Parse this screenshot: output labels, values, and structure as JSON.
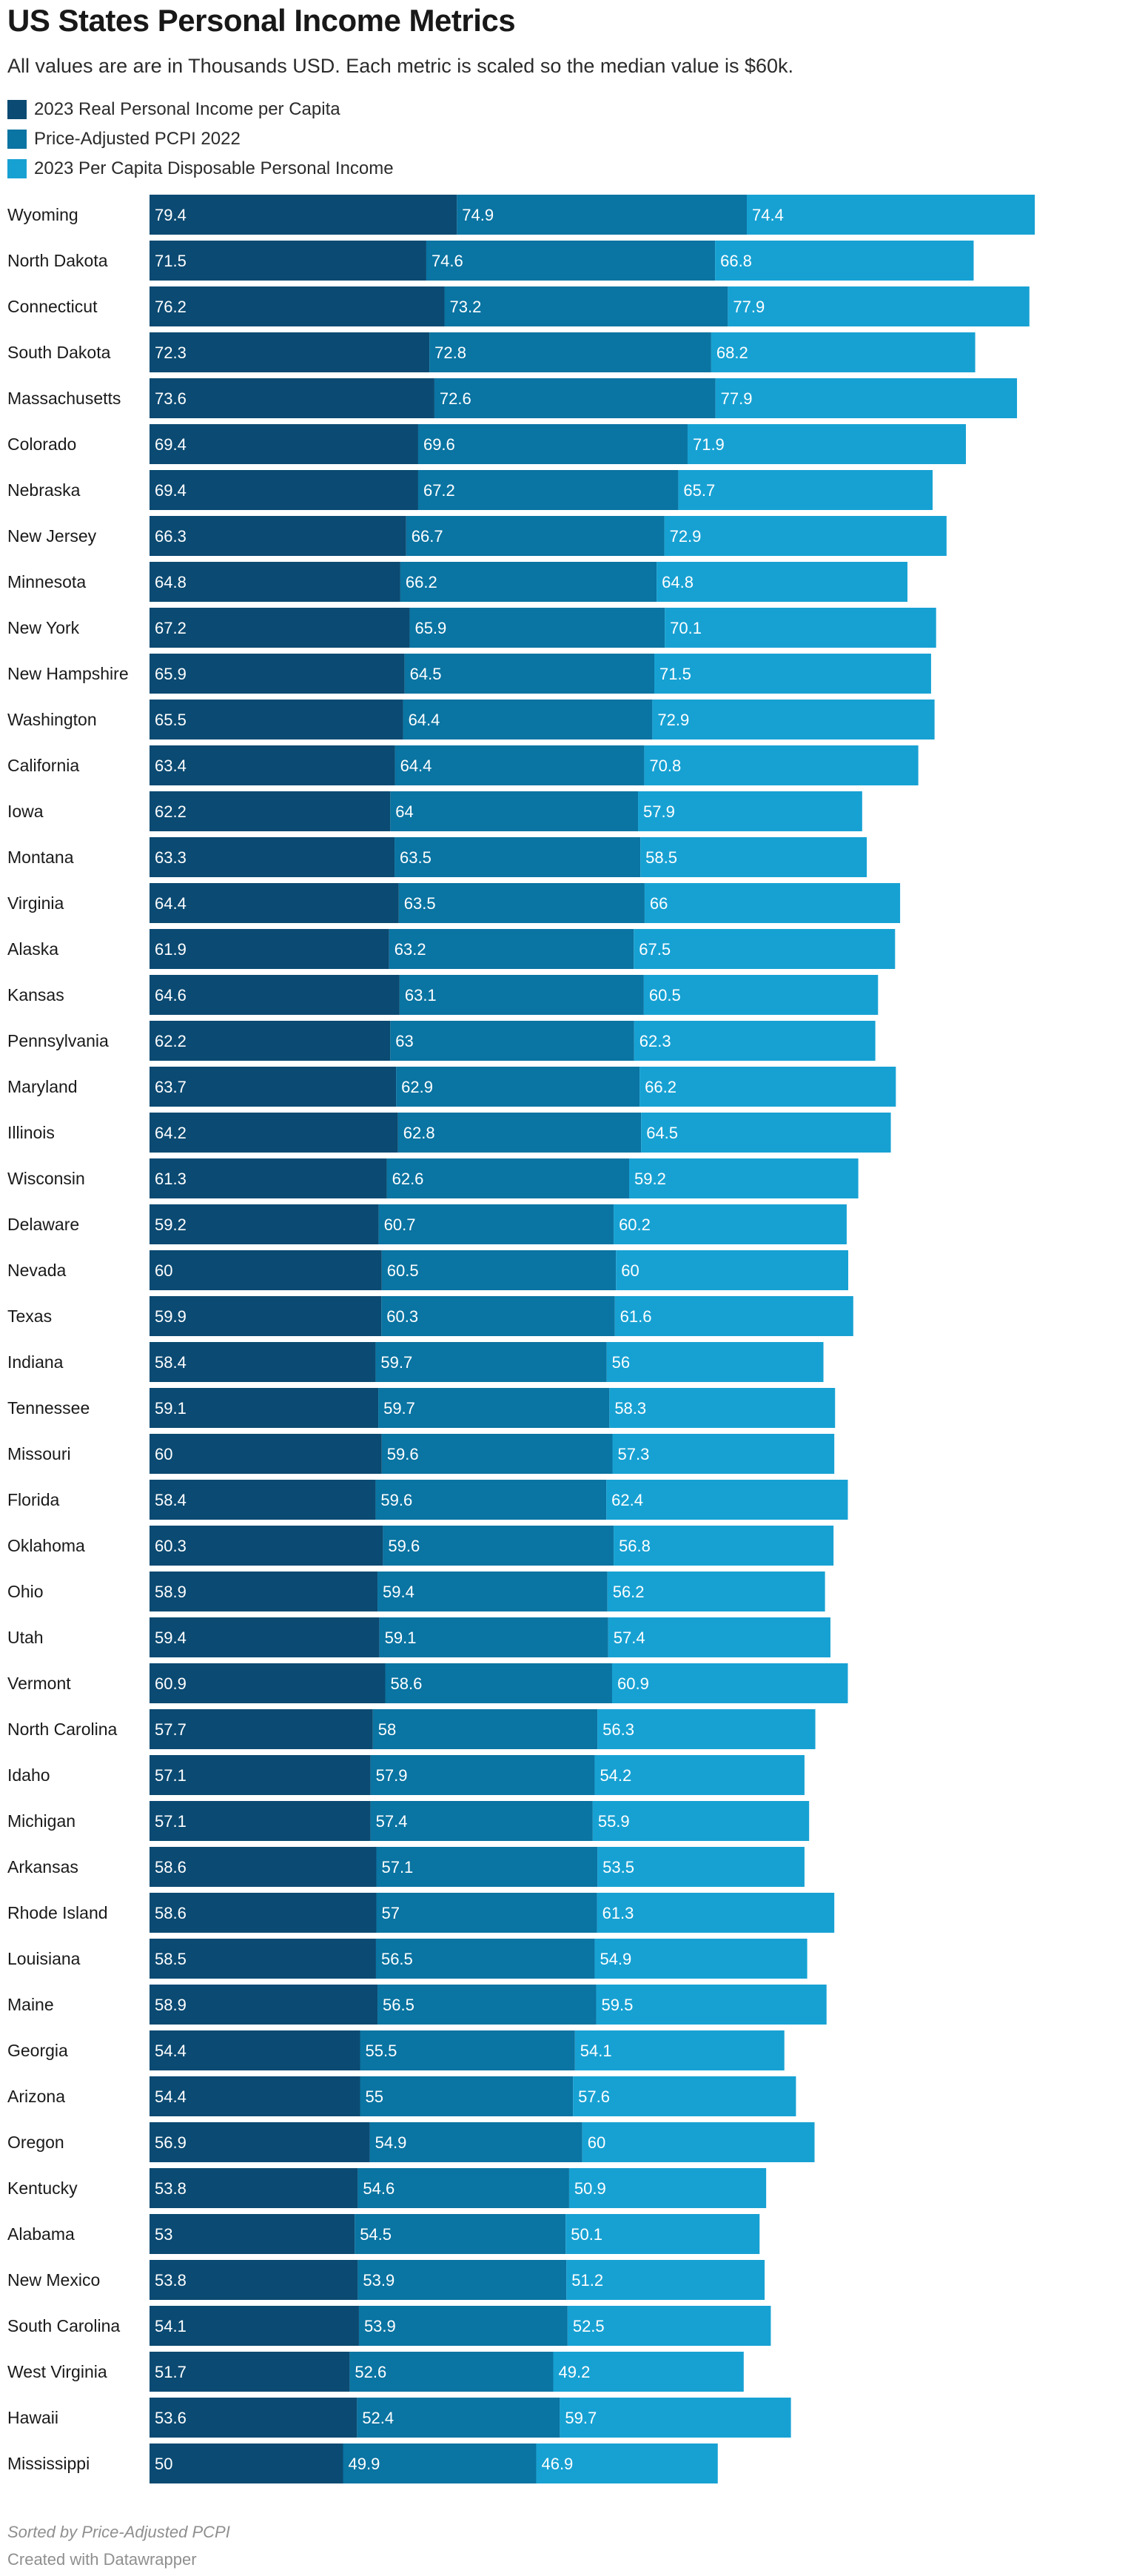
{
  "chart_data": {
    "type": "bar",
    "orientation": "horizontal",
    "stacked": true,
    "title": "US States Personal Income Metrics",
    "subtitle": "All values are are in Thousands USD. Each metric is scaled so the median value is $60k.",
    "notes": "Sorted by Price-Adjusted PCPI",
    "credit": "Created with Datawrapper",
    "colors": [
      "#0b4a72",
      "#0a74a2",
      "#17a1d3"
    ],
    "label_color": "#ffffff",
    "series_names": [
      "2023 Real Personal Income per Capita",
      "Price-Adjusted PCPI 2022",
      "2023 Per Capita Disposable Personal Income"
    ],
    "categories": [
      "Wyoming",
      "North Dakota",
      "Connecticut",
      "South Dakota",
      "Massachusetts",
      "Colorado",
      "Nebraska",
      "New Jersey",
      "Minnesota",
      "New York",
      "New Hampshire",
      "Washington",
      "California",
      "Iowa",
      "Montana",
      "Virginia",
      "Alaska",
      "Kansas",
      "Pennsylvania",
      "Maryland",
      "Illinois",
      "Wisconsin",
      "Delaware",
      "Nevada",
      "Texas",
      "Indiana",
      "Tennessee",
      "Missouri",
      "Florida",
      "Oklahoma",
      "Ohio",
      "Utah",
      "Vermont",
      "North Carolina",
      "Idaho",
      "Michigan",
      "Arkansas",
      "Rhode Island",
      "Louisiana",
      "Maine",
      "Georgia",
      "Arizona",
      "Oregon",
      "Kentucky",
      "Alabama",
      "New Mexico",
      "South Carolina",
      "West Virginia",
      "Hawaii",
      "Mississippi"
    ],
    "series": [
      {
        "name": "2023 Real Personal Income per Capita",
        "values": [
          "79.4",
          "71.5",
          "76.2",
          "72.3",
          "73.6",
          "69.4",
          "69.4",
          "66.3",
          "64.8",
          "67.2",
          "65.9",
          "65.5",
          "63.4",
          "62.2",
          "63.3",
          "64.4",
          "61.9",
          "64.6",
          "62.2",
          "63.7",
          "64.2",
          "61.3",
          "59.2",
          "60",
          "59.9",
          "58.4",
          "59.1",
          "60",
          "58.4",
          "60.3",
          "58.9",
          "59.4",
          "60.9",
          "57.7",
          "57.1",
          "57.1",
          "58.6",
          "58.6",
          "58.5",
          "58.9",
          "54.4",
          "54.4",
          "56.9",
          "53.8",
          "53",
          "53.8",
          "54.1",
          "51.7",
          "53.6",
          "50"
        ]
      },
      {
        "name": "Price-Adjusted PCPI 2022",
        "values": [
          "74.9",
          "74.6",
          "73.2",
          "72.8",
          "72.6",
          "69.6",
          "67.2",
          "66.7",
          "66.2",
          "65.9",
          "64.5",
          "64.4",
          "64.4",
          "64",
          "63.5",
          "63.5",
          "63.2",
          "63.1",
          "63",
          "62.9",
          "62.8",
          "62.6",
          "60.7",
          "60.5",
          "60.3",
          "59.7",
          "59.7",
          "59.6",
          "59.6",
          "59.6",
          "59.4",
          "59.1",
          "58.6",
          "58",
          "57.9",
          "57.4",
          "57.1",
          "57",
          "56.5",
          "56.5",
          "55.5",
          "55",
          "54.9",
          "54.6",
          "54.5",
          "53.9",
          "53.9",
          "52.6",
          "52.4",
          "49.9"
        ]
      },
      {
        "name": "2023 Per Capita Disposable Personal Income",
        "values": [
          "74.4",
          "66.8",
          "77.9",
          "68.2",
          "77.9",
          "71.9",
          "65.7",
          "72.9",
          "64.8",
          "70.1",
          "71.5",
          "72.9",
          "70.8",
          "57.9",
          "58.5",
          "66",
          "67.5",
          "60.5",
          "62.3",
          "66.2",
          "64.5",
          "59.2",
          "60.2",
          "60",
          "61.6",
          "56",
          "58.3",
          "57.3",
          "62.4",
          "56.8",
          "56.2",
          "57.4",
          "60.9",
          "56.3",
          "54.2",
          "55.9",
          "53.5",
          "61.3",
          "54.9",
          "59.5",
          "54.1",
          "57.6",
          "60",
          "50.9",
          "50.1",
          "51.2",
          "52.5",
          "49.2",
          "59.7",
          "46.9"
        ]
      }
    ]
  }
}
